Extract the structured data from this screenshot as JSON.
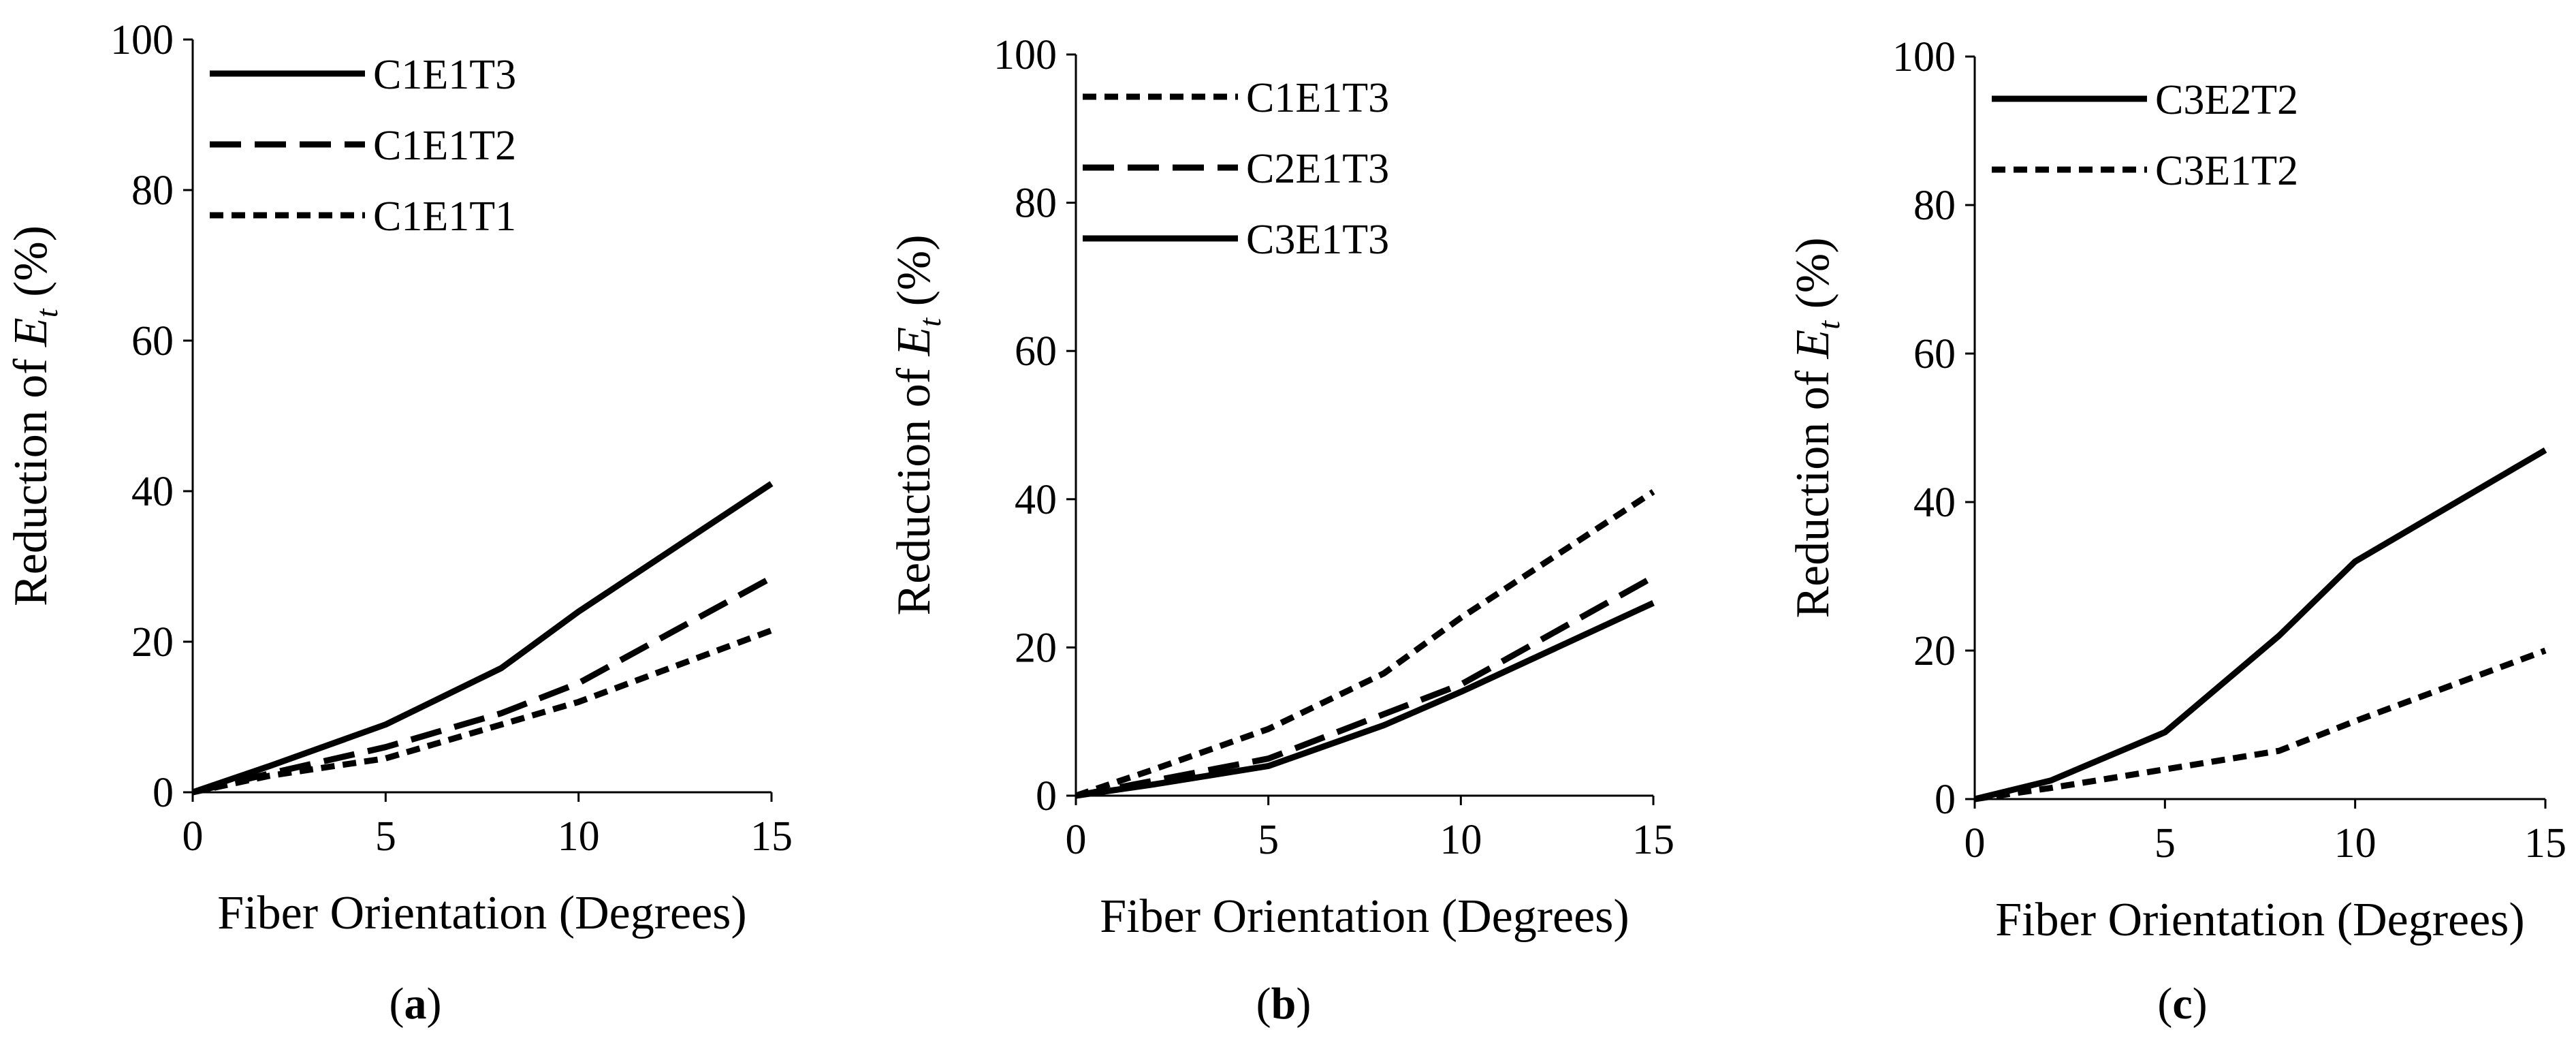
{
  "figure": {
    "background": "#ffffff",
    "line_color": "#000000"
  },
  "chart_data": [
    {
      "type": "line",
      "panel_label": "a",
      "xlabel": "Fiber Orientation (Degrees)",
      "ylabel_prefix": "Reduction of ",
      "ylabel_symbol": "E",
      "ylabel_subscript": "t",
      "ylabel_suffix": " (%)",
      "xlim": [
        0,
        15
      ],
      "ylim": [
        0,
        100
      ],
      "xticks": [
        0,
        5,
        10,
        15
      ],
      "yticks": [
        0,
        20,
        40,
        60,
        80,
        100
      ],
      "legend_position": "top-left",
      "series": [
        {
          "name": "C1E1T3",
          "style": "solid",
          "x": [
            0,
            2,
            5,
            8,
            10,
            15
          ],
          "values": [
            0,
            3.5,
            9,
            16.5,
            24,
            41
          ]
        },
        {
          "name": "C1E1T2",
          "style": "dashed",
          "x": [
            0,
            2,
            5,
            8,
            10,
            15
          ],
          "values": [
            0,
            2.5,
            6,
            10.5,
            14.5,
            28.5
          ]
        },
        {
          "name": "C1E1T1",
          "style": "dotted",
          "x": [
            0,
            2,
            5,
            8,
            10,
            15
          ],
          "values": [
            0,
            2.2,
            4.5,
            9,
            12,
            21.5
          ]
        }
      ]
    },
    {
      "type": "line",
      "panel_label": "b",
      "xlabel": "Fiber Orientation (Degrees)",
      "ylabel_prefix": "Reduction of ",
      "ylabel_symbol": "E",
      "ylabel_subscript": "t",
      "ylabel_suffix": " (%)",
      "xlim": [
        0,
        15
      ],
      "ylim": [
        0,
        100
      ],
      "xticks": [
        0,
        5,
        10,
        15
      ],
      "yticks": [
        0,
        20,
        40,
        60,
        80,
        100
      ],
      "legend_position": "top-left",
      "series": [
        {
          "name": "C1E1T3",
          "style": "dotted",
          "x": [
            0,
            2,
            5,
            8,
            10,
            15
          ],
          "values": [
            0,
            3.5,
            9,
            16.5,
            24,
            41
          ]
        },
        {
          "name": "C2E1T3",
          "style": "dashed",
          "x": [
            0,
            2,
            5,
            8,
            10,
            15
          ],
          "values": [
            0,
            2,
            5,
            11,
            15,
            29.5
          ]
        },
        {
          "name": "C3E1T3",
          "style": "solid",
          "x": [
            0,
            2,
            5,
            8,
            10,
            15
          ],
          "values": [
            0,
            1.5,
            4,
            9.5,
            14,
            26
          ]
        }
      ]
    },
    {
      "type": "line",
      "panel_label": "c",
      "xlabel": "Fiber Orientation (Degrees)",
      "ylabel_prefix": "Reduction of ",
      "ylabel_symbol": "E",
      "ylabel_subscript": "t",
      "ylabel_suffix": " (%)",
      "xlim": [
        0,
        15
      ],
      "ylim": [
        0,
        100
      ],
      "xticks": [
        0,
        5,
        10,
        15
      ],
      "yticks": [
        0,
        20,
        40,
        60,
        80,
        100
      ],
      "legend_position": "top-left",
      "series": [
        {
          "name": "C3E2T2",
          "style": "solid",
          "x": [
            0,
            2,
            5,
            8,
            10,
            15
          ],
          "values": [
            0,
            2.5,
            9,
            22,
            32,
            47
          ]
        },
        {
          "name": "C3E1T2",
          "style": "dotted",
          "x": [
            0,
            2,
            5,
            8,
            10,
            15
          ],
          "values": [
            0,
            1.5,
            4,
            6.5,
            10.5,
            20
          ]
        }
      ]
    }
  ]
}
